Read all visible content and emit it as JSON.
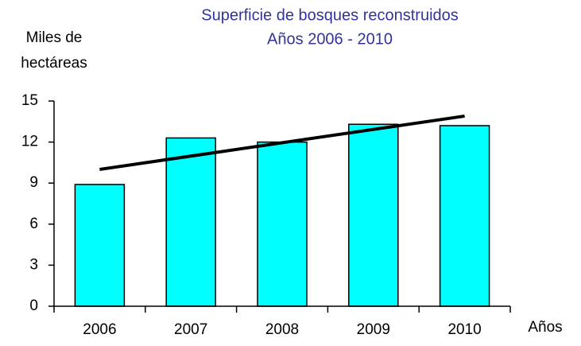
{
  "chart_data": {
    "type": "bar",
    "title": [
      "Superficie de bosques reconstruidos",
      "Años 2006 - 2010"
    ],
    "y_label": [
      "Miles de",
      "hectáreas"
    ],
    "x_label": "Años",
    "categories": [
      "2006",
      "2007",
      "2008",
      "2009",
      "2010"
    ],
    "values": [
      8.9,
      12.3,
      12.0,
      13.3,
      13.2
    ],
    "color": "#00ffff",
    "trendline": [
      10.0,
      13.9
    ],
    "ylim": [
      0,
      15
    ],
    "yticks": [
      0,
      3,
      6,
      9,
      12,
      15
    ],
    "grid": false
  }
}
